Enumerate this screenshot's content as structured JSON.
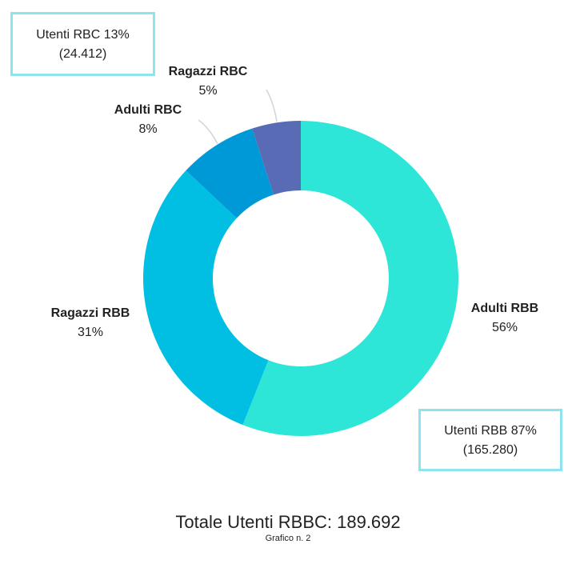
{
  "colors": {
    "adulti_rbb": "#2ee6d8",
    "ragazzi_rbb": "#00bfe3",
    "adulti_rbc": "#0099d8",
    "ragazzi_rbc": "#596bb5",
    "callout_border": "#8fe3ee",
    "leader_line": "#cfd6d8"
  },
  "chart_data": {
    "type": "pie",
    "variant": "donut",
    "title": "",
    "slices": [
      {
        "name": "Adulti RBB",
        "value": 56,
        "percent_label": "56%",
        "color": "#2ee6d8"
      },
      {
        "name": "Ragazzi RBB",
        "value": 31,
        "percent_label": "31%",
        "color": "#00bfe3"
      },
      {
        "name": "Adulti RBC",
        "value": 8,
        "percent_label": "8%",
        "color": "#0099d8"
      },
      {
        "name": "Ragazzi RBC",
        "value": 5,
        "percent_label": "5%",
        "color": "#596bb5"
      }
    ],
    "callouts": [
      {
        "line1": "Utenti RBC 13%",
        "line2": "(24.412)"
      },
      {
        "line1": "Utenti RBB 87%",
        "line2": "(165.280)"
      }
    ]
  },
  "footer": {
    "total": "Totale Utenti RBBC: 189.692",
    "caption": "Grafico n. 2"
  }
}
